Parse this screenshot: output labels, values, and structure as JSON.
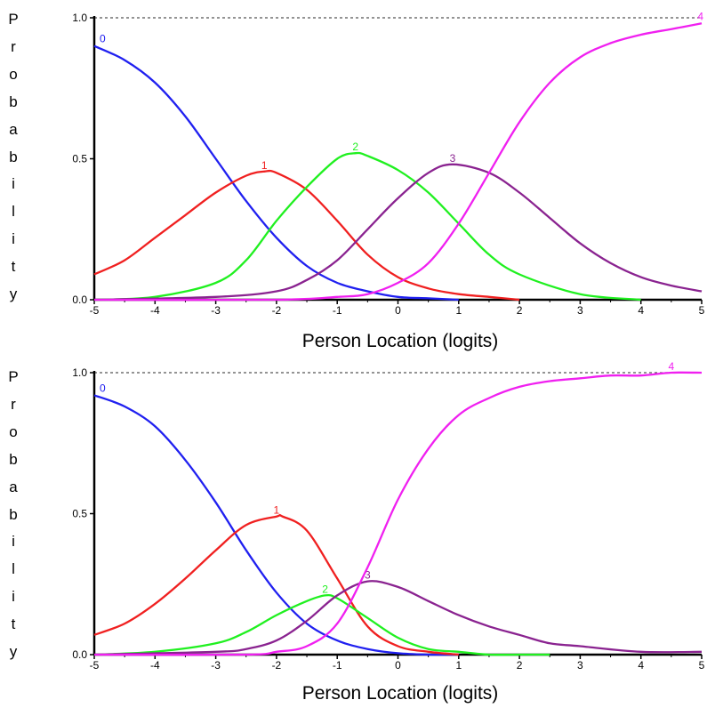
{
  "chart_data": [
    {
      "type": "line",
      "title": "",
      "xlabel": "Person Location (logits)",
      "ylabel": "Probability",
      "xlim": [
        -5,
        5
      ],
      "ylim": [
        0,
        1
      ],
      "x_ticks": [
        "-5",
        "-4",
        "-3",
        "-2",
        "-1",
        "0",
        "1",
        "2",
        "3",
        "4",
        "5"
      ],
      "y_ticks": [
        "0.0",
        "0.5",
        "1.0"
      ],
      "reference_line": 1.0,
      "series": [
        {
          "name": "0",
          "color": "#2020f0",
          "x": [
            -5,
            -4.5,
            -4,
            -3.5,
            -3,
            -2.5,
            -2,
            -1.5,
            -1,
            -0.5,
            0,
            0.5,
            1
          ],
          "y": [
            0.9,
            0.85,
            0.77,
            0.65,
            0.5,
            0.35,
            0.22,
            0.12,
            0.06,
            0.03,
            0.01,
            0.005,
            0.0
          ]
        },
        {
          "name": "1",
          "color": "#f02020",
          "x": [
            -5,
            -4.5,
            -4,
            -3.5,
            -3,
            -2.5,
            -2.2,
            -2,
            -1.5,
            -1,
            -0.5,
            0,
            0.5,
            1,
            1.5,
            2
          ],
          "y": [
            0.09,
            0.14,
            0.22,
            0.3,
            0.38,
            0.44,
            0.455,
            0.45,
            0.39,
            0.28,
            0.16,
            0.08,
            0.04,
            0.02,
            0.01,
            0.0
          ]
        },
        {
          "name": "2",
          "color": "#20f020",
          "x": [
            -5,
            -4,
            -3,
            -2.5,
            -2,
            -1.5,
            -1,
            -0.7,
            -0.5,
            0,
            0.5,
            1,
            1.5,
            2,
            3,
            4
          ],
          "y": [
            0.0,
            0.01,
            0.06,
            0.14,
            0.28,
            0.4,
            0.5,
            0.52,
            0.51,
            0.46,
            0.38,
            0.27,
            0.16,
            0.09,
            0.02,
            0.0
          ]
        },
        {
          "name": "3",
          "color": "#8a2390",
          "x": [
            -5,
            -3,
            -2,
            -1.5,
            -1,
            -0.5,
            0,
            0.5,
            0.9,
            1.5,
            2,
            2.5,
            3,
            3.5,
            4,
            4.5,
            5
          ],
          "y": [
            0.0,
            0.01,
            0.03,
            0.07,
            0.14,
            0.25,
            0.36,
            0.45,
            0.48,
            0.45,
            0.38,
            0.29,
            0.2,
            0.13,
            0.08,
            0.05,
            0.03
          ]
        },
        {
          "name": "4",
          "color": "#f020f0",
          "x": [
            -5,
            -2,
            -1,
            -0.5,
            0,
            0.5,
            1,
            1.5,
            2,
            2.5,
            3,
            3.5,
            4,
            4.5,
            5
          ],
          "y": [
            0.0,
            0.0,
            0.01,
            0.02,
            0.06,
            0.13,
            0.27,
            0.45,
            0.63,
            0.77,
            0.86,
            0.91,
            0.94,
            0.96,
            0.98
          ]
        }
      ]
    },
    {
      "type": "line",
      "title": "",
      "xlabel": "Person Location (logits)",
      "ylabel": "Probability",
      "xlim": [
        -5,
        5
      ],
      "ylim": [
        0,
        1
      ],
      "x_ticks": [
        "-5",
        "-4",
        "-3",
        "-2",
        "-1",
        "0",
        "1",
        "2",
        "3",
        "4",
        "5"
      ],
      "y_ticks": [
        "0.0",
        "0.5",
        "1.0"
      ],
      "reference_line": 1.0,
      "series": [
        {
          "name": "0",
          "color": "#2020f0",
          "x": [
            -5,
            -4.5,
            -4,
            -3.5,
            -3,
            -2.5,
            -2,
            -1.5,
            -1,
            -0.5,
            0,
            0.5,
            1
          ],
          "y": [
            0.92,
            0.88,
            0.81,
            0.69,
            0.54,
            0.37,
            0.22,
            0.11,
            0.05,
            0.02,
            0.005,
            0.0,
            0.0
          ]
        },
        {
          "name": "1",
          "color": "#f02020",
          "x": [
            -5,
            -4.5,
            -4,
            -3.5,
            -3,
            -2.5,
            -2,
            -1.9,
            -1.5,
            -1,
            -0.5,
            0,
            0.5,
            1
          ],
          "y": [
            0.07,
            0.11,
            0.18,
            0.27,
            0.37,
            0.46,
            0.49,
            0.49,
            0.44,
            0.27,
            0.1,
            0.03,
            0.01,
            0.0
          ]
        },
        {
          "name": "2",
          "color": "#20f020",
          "x": [
            -5,
            -4,
            -3,
            -2.5,
            -2,
            -1.5,
            -1.2,
            -1,
            -0.5,
            0,
            0.5,
            1,
            1.5,
            2,
            2.5
          ],
          "y": [
            0.0,
            0.01,
            0.04,
            0.08,
            0.14,
            0.19,
            0.21,
            0.2,
            0.13,
            0.06,
            0.02,
            0.01,
            0.0,
            0.0,
            0.0
          ]
        },
        {
          "name": "3",
          "color": "#8a2390",
          "x": [
            -5,
            -3,
            -2.5,
            -2,
            -1.5,
            -1,
            -0.5,
            0,
            0.5,
            1,
            1.5,
            2,
            2.5,
            3,
            4,
            5
          ],
          "y": [
            0.0,
            0.01,
            0.02,
            0.05,
            0.12,
            0.21,
            0.26,
            0.24,
            0.19,
            0.14,
            0.1,
            0.07,
            0.04,
            0.03,
            0.01,
            0.01
          ]
        },
        {
          "name": "4",
          "color": "#f020f0",
          "x": [
            -5,
            -2.5,
            -2,
            -1.5,
            -1,
            -0.5,
            0,
            0.5,
            1,
            1.5,
            2,
            2.5,
            3,
            3.5,
            4,
            4.5,
            5
          ],
          "y": [
            0.0,
            0.0,
            0.01,
            0.03,
            0.11,
            0.31,
            0.55,
            0.73,
            0.85,
            0.91,
            0.95,
            0.97,
            0.98,
            0.99,
            0.99,
            1.0,
            1.0
          ]
        }
      ]
    }
  ]
}
